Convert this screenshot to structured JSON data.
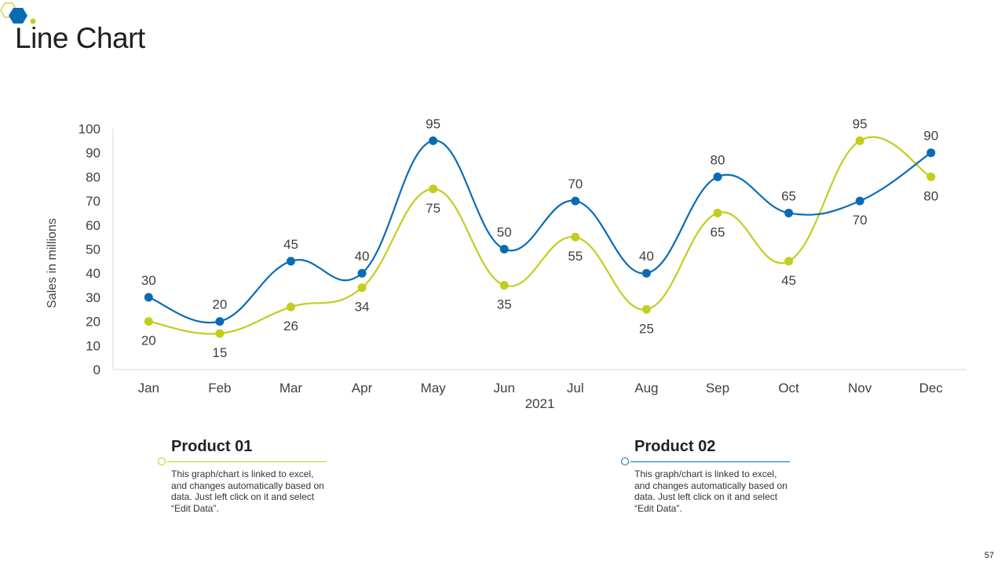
{
  "slide": {
    "title": "Line Chart",
    "page_number": "57"
  },
  "colors": {
    "product01": "#c3cd1f",
    "product02": "#0a6bb5",
    "axis": "#d9d9d9",
    "logo_blue": "#0a6bb5",
    "logo_yellow": "#c3cd1f"
  },
  "cards": [
    {
      "title": "Product 01",
      "text": "This graph/chart is linked to excel, and changes automatically based on data. Just left click on it and select “Edit Data”."
    },
    {
      "title": "Product 02",
      "text": "This graph/chart is linked to excel, and changes automatically based on data. Just left click on it and select “Edit Data”."
    }
  ],
  "chart_data": {
    "type": "line",
    "title": "",
    "xlabel": "2021",
    "ylabel": "Sales in millions",
    "ylim": [
      0,
      100
    ],
    "yticks": [
      0,
      10,
      20,
      30,
      40,
      50,
      60,
      70,
      80,
      90,
      100
    ],
    "categories": [
      "Jan",
      "Feb",
      "Mar",
      "Apr",
      "May",
      "Jun",
      "Jul",
      "Aug",
      "Sep",
      "Oct",
      "Nov",
      "Dec"
    ],
    "smooth": true,
    "grid": false,
    "series": [
      {
        "name": "Product 01",
        "color": "#c3cd1f",
        "values": [
          20,
          15,
          26,
          34,
          75,
          35,
          55,
          25,
          65,
          45,
          95,
          80
        ],
        "labels": [
          "20",
          "15",
          "26",
          "34",
          "75",
          "35",
          "55",
          "25",
          "65",
          "45",
          "95",
          "80"
        ]
      },
      {
        "name": "Product 02",
        "color": "#0a6bb5",
        "values": [
          30,
          20,
          45,
          40,
          95,
          50,
          70,
          40,
          80,
          65,
          70,
          90
        ],
        "labels": [
          "30",
          "20",
          "45",
          "40",
          "95",
          "50",
          "70",
          "40",
          "80",
          "65",
          "70",
          "90"
        ]
      }
    ]
  }
}
